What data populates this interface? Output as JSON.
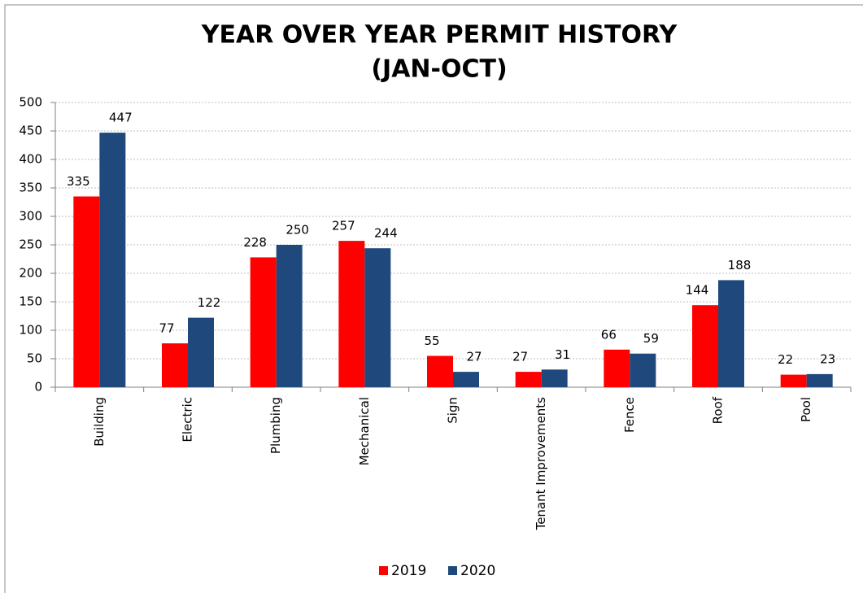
{
  "chart_data": {
    "type": "bar",
    "title": "YEAR OVER YEAR PERMIT HISTORY",
    "subtitle": "(JAN-OCT)",
    "categories": [
      "Building",
      "Electric",
      "Plumbing",
      "Mechanical",
      "Sign",
      "Tenant Improvements",
      "Fence",
      "Roof",
      "Pool"
    ],
    "series": [
      {
        "name": "2019",
        "color": "#ff0000",
        "values": [
          335,
          77,
          228,
          257,
          55,
          27,
          66,
          144,
          22
        ]
      },
      {
        "name": "2020",
        "color": "#1f497d",
        "values": [
          447,
          122,
          250,
          244,
          27,
          31,
          59,
          188,
          23
        ]
      }
    ],
    "ylim": [
      0,
      500
    ],
    "yticks": [
      0,
      50,
      100,
      150,
      200,
      250,
      300,
      350,
      400,
      450,
      500
    ],
    "grid": true,
    "legend": "bottom"
  }
}
